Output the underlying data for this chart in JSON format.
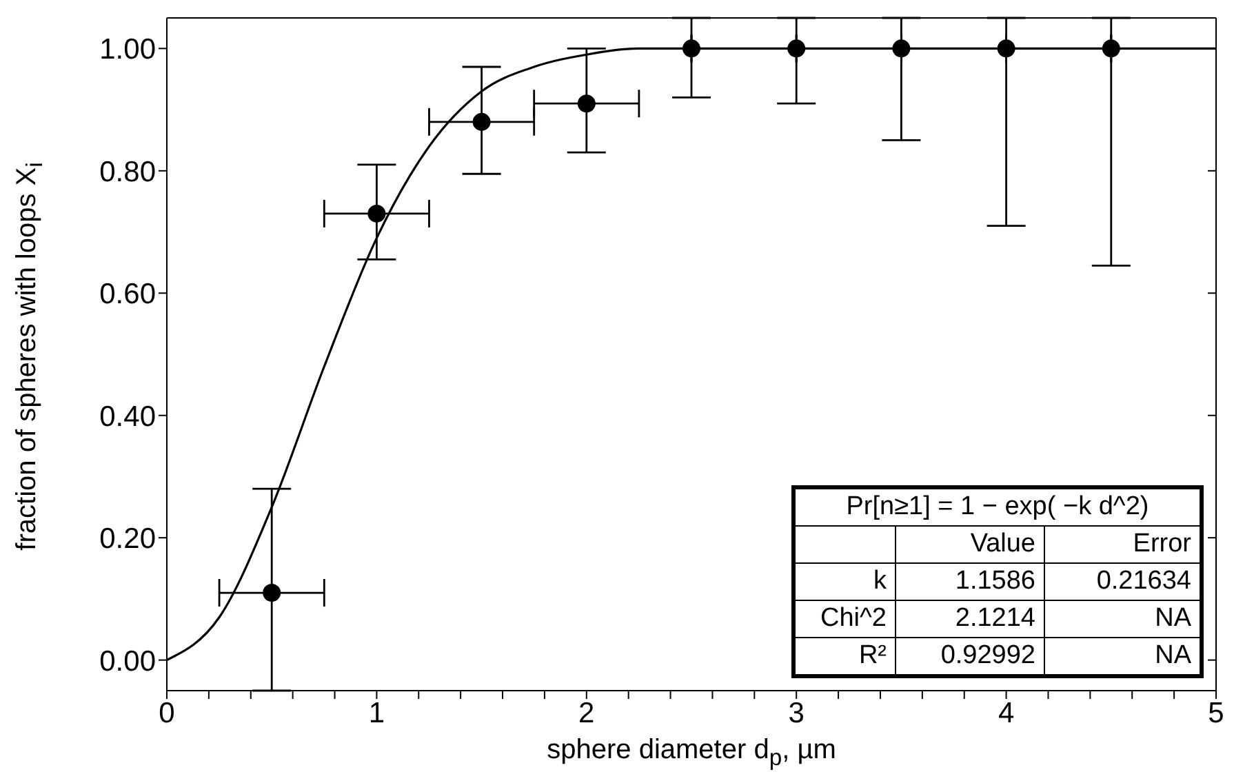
{
  "chart_data": {
    "type": "scatter",
    "xlabel": "sphere diameter d$_{p}$, µm",
    "ylabel": "fraction of spheres with loops X$_{i}$",
    "xlim": [
      0,
      5
    ],
    "ylim": [
      -0.05,
      1.05
    ],
    "xticks": [
      0,
      {
        "value": 0.2,
        "label": null
      },
      {
        "value": 0.4,
        "label": null
      },
      {
        "value": 0.6,
        "label": null
      },
      {
        "value": 0.8,
        "label": null
      },
      1,
      {
        "value": 1.2,
        "label": null
      },
      {
        "value": 1.4,
        "label": null
      },
      {
        "value": 1.6,
        "label": null
      },
      {
        "value": 1.8,
        "label": null
      },
      2,
      {
        "value": 2.2,
        "label": null
      },
      {
        "value": 2.4,
        "label": null
      },
      {
        "value": 2.6,
        "label": null
      },
      {
        "value": 2.8,
        "label": null
      },
      3,
      {
        "value": 3.2,
        "label": null
      },
      {
        "value": 3.4,
        "label": null
      },
      {
        "value": 3.6,
        "label": null
      },
      {
        "value": 3.8,
        "label": null
      },
      4,
      {
        "value": 4.2,
        "label": null
      },
      {
        "value": 4.4,
        "label": null
      },
      {
        "value": 4.6,
        "label": null
      },
      {
        "value": 4.8,
        "label": null
      },
      5
    ],
    "yticks": [
      {
        "value": 0,
        "label": "0.00"
      },
      {
        "value": 0.2,
        "label": "0.20"
      },
      {
        "value": 0.4,
        "label": "0.40"
      },
      {
        "value": 0.6,
        "label": "0.60"
      },
      {
        "value": 0.8,
        "label": "0.80"
      },
      {
        "value": 1,
        "label": "1.00"
      }
    ],
    "series": [
      {
        "type": "line",
        "marker": "none",
        "color": "#000000",
        "x": [
          0,
          0.25,
          0.5,
          0.75,
          1,
          1.25,
          1.5,
          1.75,
          2,
          2.25,
          2.5,
          3,
          3.5,
          4,
          4.5,
          5
        ],
        "values": [
          0,
          0.07,
          0.25,
          0.48,
          0.69,
          0.84,
          0.93,
          0.97,
          0.99,
          1,
          1,
          1,
          1,
          1,
          1,
          1
        ]
      },
      {
        "marker": "circle",
        "color": "#000000",
        "x": [
          0.5,
          1,
          1.5,
          2,
          2.5,
          3,
          3.5,
          4,
          4.5
        ],
        "values": [
          0.11,
          0.73,
          0.88,
          0.91,
          1,
          1,
          1,
          1,
          1
        ],
        "errors": [
          [
            -0.05,
            0.28
          ],
          [
            0.655,
            0.81
          ],
          [
            0.795,
            0.97
          ],
          [
            0.83,
            1
          ],
          [
            0.92,
            1.05
          ],
          [
            0.91,
            1.05
          ],
          [
            0.85,
            1.05
          ],
          [
            0.71,
            1.05
          ],
          [
            0.645,
            1.05
          ]
        ],
        "xerrors": [
          0.25,
          0.25,
          0.25,
          0.25,
          null,
          null,
          null,
          null,
          null
        ]
      }
    ],
    "annotations": [
      "Pr[n≥1] = 1 − exp( −k d^2)",
      "Value",
      "Error",
      "k",
      "1.1586",
      "0.21634",
      "Chi^2",
      "2.1214",
      "NA",
      "R²",
      "0.92992",
      "NA"
    ]
  }
}
